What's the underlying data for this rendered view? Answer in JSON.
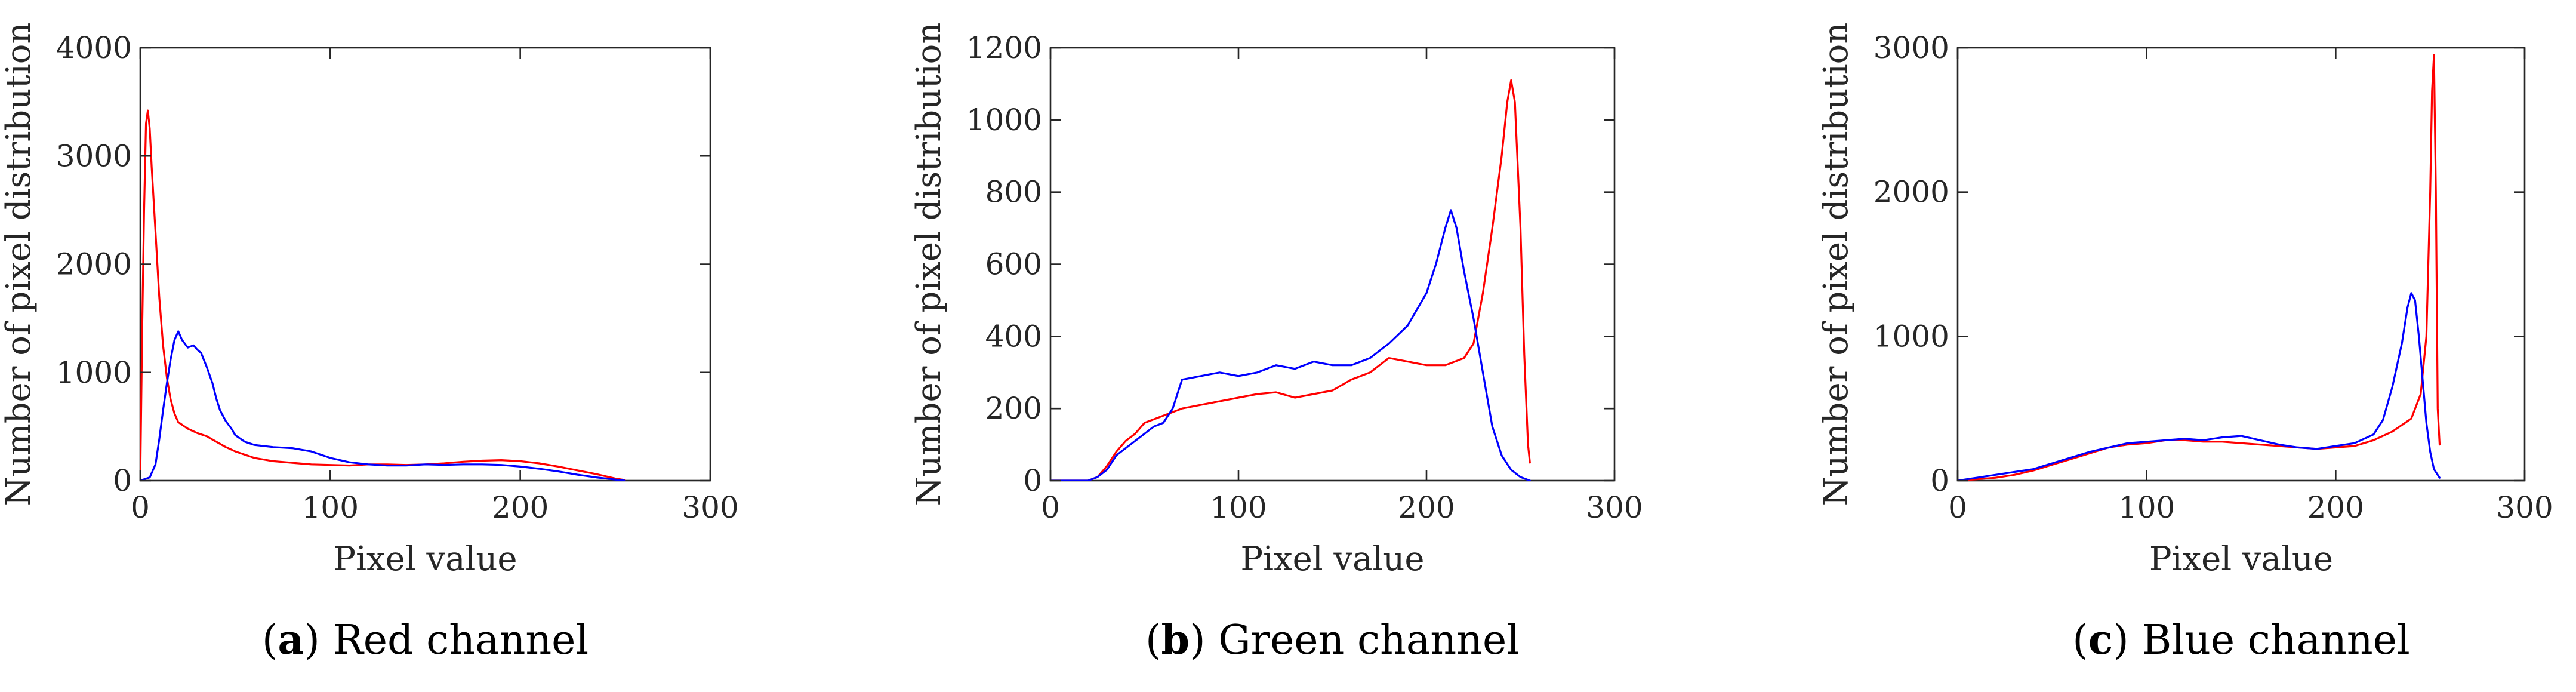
{
  "figure": {
    "series_colors": {
      "red": "#ff0000",
      "blue": "#0000ff"
    },
    "axis_color": "#262626"
  },
  "chart_data": [
    {
      "id": "a",
      "type": "line",
      "title": "",
      "xlabel": "Pixel value",
      "ylabel": "Number of pixel distribution",
      "xlim": [
        0,
        300
      ],
      "ylim": [
        0,
        4000
      ],
      "xticks": [
        0,
        100,
        200,
        300
      ],
      "yticks": [
        0,
        1000,
        2000,
        3000,
        4000
      ],
      "xtick_labels": [
        "0",
        "100",
        "200",
        "300"
      ],
      "ytick_labels": [
        "0",
        "1000",
        "2000",
        "3000",
        "4000"
      ],
      "caption_open": "(",
      "caption_letter": "a",
      "caption_text": ") Red channel",
      "series": [
        {
          "name": "red",
          "color": "#ff0000",
          "points": [
            [
              0,
              0
            ],
            [
              1,
              1400
            ],
            [
              2,
              2500
            ],
            [
              3,
              3300
            ],
            [
              4,
              3420
            ],
            [
              5,
              3250
            ],
            [
              6,
              2900
            ],
            [
              8,
              2300
            ],
            [
              10,
              1700
            ],
            [
              12,
              1250
            ],
            [
              14,
              950
            ],
            [
              16,
              750
            ],
            [
              18,
              620
            ],
            [
              20,
              540
            ],
            [
              25,
              480
            ],
            [
              30,
              440
            ],
            [
              35,
              410
            ],
            [
              40,
              360
            ],
            [
              45,
              310
            ],
            [
              50,
              270
            ],
            [
              60,
              210
            ],
            [
              70,
              180
            ],
            [
              80,
              165
            ],
            [
              90,
              150
            ],
            [
              100,
              145
            ],
            [
              110,
              140
            ],
            [
              120,
              150
            ],
            [
              130,
              150
            ],
            [
              140,
              145
            ],
            [
              150,
              150
            ],
            [
              160,
              160
            ],
            [
              170,
              175
            ],
            [
              180,
              185
            ],
            [
              190,
              190
            ],
            [
              200,
              180
            ],
            [
              210,
              160
            ],
            [
              220,
              130
            ],
            [
              230,
              95
            ],
            [
              240,
              60
            ],
            [
              250,
              20
            ],
            [
              255,
              5
            ]
          ]
        },
        {
          "name": "blue",
          "color": "#0000ff",
          "points": [
            [
              0,
              0
            ],
            [
              5,
              30
            ],
            [
              8,
              150
            ],
            [
              10,
              380
            ],
            [
              12,
              650
            ],
            [
              14,
              900
            ],
            [
              16,
              1120
            ],
            [
              18,
              1300
            ],
            [
              20,
              1380
            ],
            [
              22,
              1300
            ],
            [
              25,
              1230
            ],
            [
              28,
              1250
            ],
            [
              30,
              1210
            ],
            [
              32,
              1180
            ],
            [
              35,
              1050
            ],
            [
              38,
              900
            ],
            [
              40,
              760
            ],
            [
              42,
              650
            ],
            [
              45,
              550
            ],
            [
              48,
              480
            ],
            [
              50,
              420
            ],
            [
              55,
              360
            ],
            [
              60,
              330
            ],
            [
              70,
              310
            ],
            [
              80,
              300
            ],
            [
              90,
              270
            ],
            [
              100,
              210
            ],
            [
              110,
              170
            ],
            [
              120,
              150
            ],
            [
              130,
              140
            ],
            [
              140,
              140
            ],
            [
              150,
              150
            ],
            [
              160,
              145
            ],
            [
              170,
              150
            ],
            [
              180,
              150
            ],
            [
              190,
              145
            ],
            [
              200,
              130
            ],
            [
              210,
              110
            ],
            [
              220,
              85
            ],
            [
              230,
              55
            ],
            [
              240,
              30
            ],
            [
              250,
              10
            ],
            [
              255,
              0
            ]
          ]
        }
      ]
    },
    {
      "id": "b",
      "type": "line",
      "title": "",
      "xlabel": "Pixel value",
      "ylabel": "Number of pixel distribution",
      "xlim": [
        0,
        300
      ],
      "ylim": [
        0,
        1200
      ],
      "xticks": [
        0,
        100,
        200,
        300
      ],
      "yticks": [
        0,
        200,
        400,
        600,
        800,
        1000,
        1200
      ],
      "xtick_labels": [
        "0",
        "100",
        "200",
        "300"
      ],
      "ytick_labels": [
        "0",
        "200",
        "400",
        "600",
        "800",
        "1000",
        "1200"
      ],
      "caption_open": "(",
      "caption_letter": "b",
      "caption_text": ") Green channel",
      "series": [
        {
          "name": "red",
          "color": "#ff0000",
          "points": [
            [
              0,
              0
            ],
            [
              20,
              0
            ],
            [
              25,
              10
            ],
            [
              30,
              40
            ],
            [
              35,
              80
            ],
            [
              40,
              110
            ],
            [
              45,
              130
            ],
            [
              50,
              160
            ],
            [
              55,
              170
            ],
            [
              60,
              180
            ],
            [
              70,
              200
            ],
            [
              80,
              210
            ],
            [
              90,
              220
            ],
            [
              100,
              230
            ],
            [
              110,
              240
            ],
            [
              120,
              245
            ],
            [
              130,
              230
            ],
            [
              140,
              240
            ],
            [
              150,
              250
            ],
            [
              160,
              280
            ],
            [
              170,
              300
            ],
            [
              180,
              340
            ],
            [
              190,
              330
            ],
            [
              200,
              320
            ],
            [
              210,
              320
            ],
            [
              220,
              340
            ],
            [
              225,
              380
            ],
            [
              230,
              520
            ],
            [
              235,
              700
            ],
            [
              240,
              900
            ],
            [
              243,
              1050
            ],
            [
              245,
              1110
            ],
            [
              247,
              1050
            ],
            [
              250,
              700
            ],
            [
              252,
              350
            ],
            [
              254,
              100
            ],
            [
              255,
              50
            ]
          ]
        },
        {
          "name": "blue",
          "color": "#0000ff",
          "points": [
            [
              0,
              0
            ],
            [
              20,
              0
            ],
            [
              25,
              10
            ],
            [
              30,
              30
            ],
            [
              35,
              70
            ],
            [
              40,
              90
            ],
            [
              45,
              110
            ],
            [
              50,
              130
            ],
            [
              55,
              150
            ],
            [
              60,
              160
            ],
            [
              65,
              200
            ],
            [
              70,
              280
            ],
            [
              80,
              290
            ],
            [
              90,
              300
            ],
            [
              100,
              290
            ],
            [
              110,
              300
            ],
            [
              120,
              320
            ],
            [
              130,
              310
            ],
            [
              140,
              330
            ],
            [
              150,
              320
            ],
            [
              160,
              320
            ],
            [
              170,
              340
            ],
            [
              180,
              380
            ],
            [
              190,
              430
            ],
            [
              200,
              520
            ],
            [
              205,
              600
            ],
            [
              210,
              700
            ],
            [
              213,
              750
            ],
            [
              216,
              700
            ],
            [
              220,
              580
            ],
            [
              225,
              450
            ],
            [
              230,
              300
            ],
            [
              235,
              150
            ],
            [
              240,
              70
            ],
            [
              245,
              30
            ],
            [
              250,
              10
            ],
            [
              255,
              0
            ]
          ]
        }
      ]
    },
    {
      "id": "c",
      "type": "line",
      "title": "",
      "xlabel": "Pixel value",
      "ylabel": "Number of pixel distribution",
      "xlim": [
        0,
        300
      ],
      "ylim": [
        0,
        3000
      ],
      "xticks": [
        0,
        100,
        200,
        300
      ],
      "yticks": [
        0,
        1000,
        2000,
        3000
      ],
      "xtick_labels": [
        "0",
        "100",
        "200",
        "300"
      ],
      "ytick_labels": [
        "0",
        "1000",
        "2000",
        "3000"
      ],
      "caption_open": "(",
      "caption_letter": "c",
      "caption_text": ") Blue channel",
      "series": [
        {
          "name": "red",
          "color": "#ff0000",
          "points": [
            [
              0,
              0
            ],
            [
              10,
              10
            ],
            [
              20,
              20
            ],
            [
              30,
              40
            ],
            [
              40,
              70
            ],
            [
              50,
              110
            ],
            [
              60,
              150
            ],
            [
              70,
              190
            ],
            [
              80,
              230
            ],
            [
              90,
              250
            ],
            [
              100,
              260
            ],
            [
              110,
              280
            ],
            [
              120,
              280
            ],
            [
              130,
              270
            ],
            [
              140,
              270
            ],
            [
              150,
              260
            ],
            [
              160,
              250
            ],
            [
              170,
              240
            ],
            [
              180,
              230
            ],
            [
              190,
              220
            ],
            [
              200,
              230
            ],
            [
              210,
              240
            ],
            [
              220,
              280
            ],
            [
              230,
              340
            ],
            [
              240,
              430
            ],
            [
              245,
              600
            ],
            [
              248,
              1000
            ],
            [
              250,
              2000
            ],
            [
              251,
              2700
            ],
            [
              252,
              2950
            ],
            [
              253,
              2000
            ],
            [
              254,
              500
            ],
            [
              255,
              250
            ]
          ]
        },
        {
          "name": "blue",
          "color": "#0000ff",
          "points": [
            [
              0,
              0
            ],
            [
              10,
              20
            ],
            [
              20,
              40
            ],
            [
              30,
              60
            ],
            [
              40,
              80
            ],
            [
              50,
              120
            ],
            [
              60,
              160
            ],
            [
              70,
              200
            ],
            [
              80,
              230
            ],
            [
              90,
              260
            ],
            [
              100,
              270
            ],
            [
              110,
              280
            ],
            [
              120,
              290
            ],
            [
              130,
              280
            ],
            [
              140,
              300
            ],
            [
              150,
              310
            ],
            [
              160,
              280
            ],
            [
              170,
              250
            ],
            [
              180,
              230
            ],
            [
              190,
              220
            ],
            [
              200,
              240
            ],
            [
              210,
              260
            ],
            [
              220,
              320
            ],
            [
              225,
              420
            ],
            [
              230,
              650
            ],
            [
              235,
              950
            ],
            [
              238,
              1200
            ],
            [
              240,
              1300
            ],
            [
              242,
              1250
            ],
            [
              244,
              1000
            ],
            [
              246,
              700
            ],
            [
              248,
              400
            ],
            [
              250,
              200
            ],
            [
              252,
              80
            ],
            [
              255,
              20
            ]
          ]
        }
      ]
    }
  ]
}
